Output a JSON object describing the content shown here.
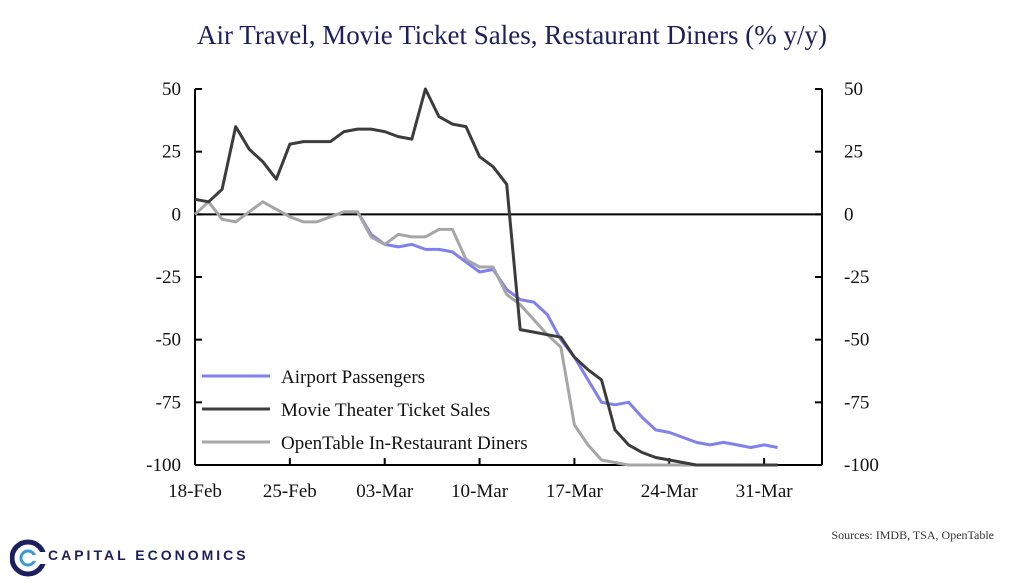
{
  "chart_data": {
    "type": "line",
    "title": "Air Travel, Movie Ticket Sales, Restaurant Diners (% y/y)",
    "ylim": [
      -100,
      50
    ],
    "yticks": [
      "50",
      "25",
      "0",
      "-25",
      "-50",
      "-75",
      "-100"
    ],
    "x_tick_labels": [
      "18-Feb",
      "25-Feb",
      "03-Mar",
      "10-Mar",
      "17-Mar",
      "24-Mar",
      "31-Mar"
    ],
    "x_tick_days": [
      0,
      7,
      14,
      21,
      28,
      35,
      42
    ],
    "xlim": [
      0,
      46
    ],
    "series": [
      {
        "name": "Airport Passengers",
        "color": "#8080ee",
        "x": [
          12,
          13,
          14,
          15,
          16,
          17,
          18,
          19,
          20,
          21,
          22,
          23,
          24,
          25,
          26,
          27,
          28,
          29,
          30,
          31,
          32,
          33,
          34,
          35,
          36,
          37,
          38,
          39,
          40,
          41,
          42,
          43
        ],
        "values": [
          1,
          -8,
          -12,
          -13,
          -12,
          -14,
          -14,
          -15,
          -19,
          -23,
          -22,
          -30,
          -34,
          -35,
          -40,
          -50,
          -57,
          -66,
          -75,
          -76,
          -75,
          -81,
          -86,
          -87,
          -89,
          -91,
          -92,
          -91,
          -92,
          -93,
          -92,
          -93
        ]
      },
      {
        "name": "Movie Theater Ticket Sales",
        "color": "#3c3c3c",
        "x": [
          0,
          1,
          2,
          3,
          4,
          5,
          6,
          7,
          8,
          9,
          10,
          11,
          12,
          13,
          14,
          15,
          16,
          17,
          18,
          19,
          20,
          21,
          22,
          23,
          24,
          25,
          26,
          27,
          28,
          29,
          30,
          31,
          32,
          33,
          34,
          35,
          36,
          37,
          38,
          39,
          40,
          41,
          42,
          43
        ],
        "values": [
          6,
          5,
          10,
          35,
          26,
          21,
          14,
          28,
          29,
          29,
          29,
          33,
          34,
          34,
          33,
          31,
          30,
          50,
          39,
          36,
          35,
          23,
          19,
          12,
          -46,
          -47,
          -48,
          -49,
          -57,
          -62,
          -66,
          -86,
          -92,
          -95,
          -97,
          -98,
          -99,
          -100,
          -100,
          -100,
          -100,
          -100,
          -100,
          -100
        ]
      },
      {
        "name": "OpenTable In-Restaurant Diners",
        "color": "#a6a6a6",
        "x": [
          0,
          1,
          2,
          3,
          4,
          5,
          6,
          7,
          8,
          9,
          10,
          11,
          12,
          13,
          14,
          15,
          16,
          17,
          18,
          19,
          20,
          21,
          22,
          23,
          24,
          25,
          26,
          27,
          28,
          29,
          30,
          31,
          32,
          33,
          34,
          35,
          36,
          37,
          38,
          39,
          40,
          41,
          42,
          43
        ],
        "values": [
          0,
          5,
          -2,
          -3,
          1,
          5,
          2,
          -1,
          -3,
          -3,
          -1,
          1,
          1,
          -9,
          -12,
          -8,
          -9,
          -9,
          -6,
          -6,
          -18,
          -21,
          -21,
          -32,
          -36,
          -42,
          -48,
          -53,
          -84,
          -92,
          -98,
          -99,
          -100,
          -100,
          -100,
          -100,
          -100,
          -100,
          -100,
          -100,
          -100,
          -100,
          -100,
          -100
        ]
      }
    ]
  },
  "sources": "Sources: IMDB, TSA, OpenTable",
  "brand": {
    "name": "CAPITAL ECONOMICS",
    "color": "#1b1f5e"
  }
}
